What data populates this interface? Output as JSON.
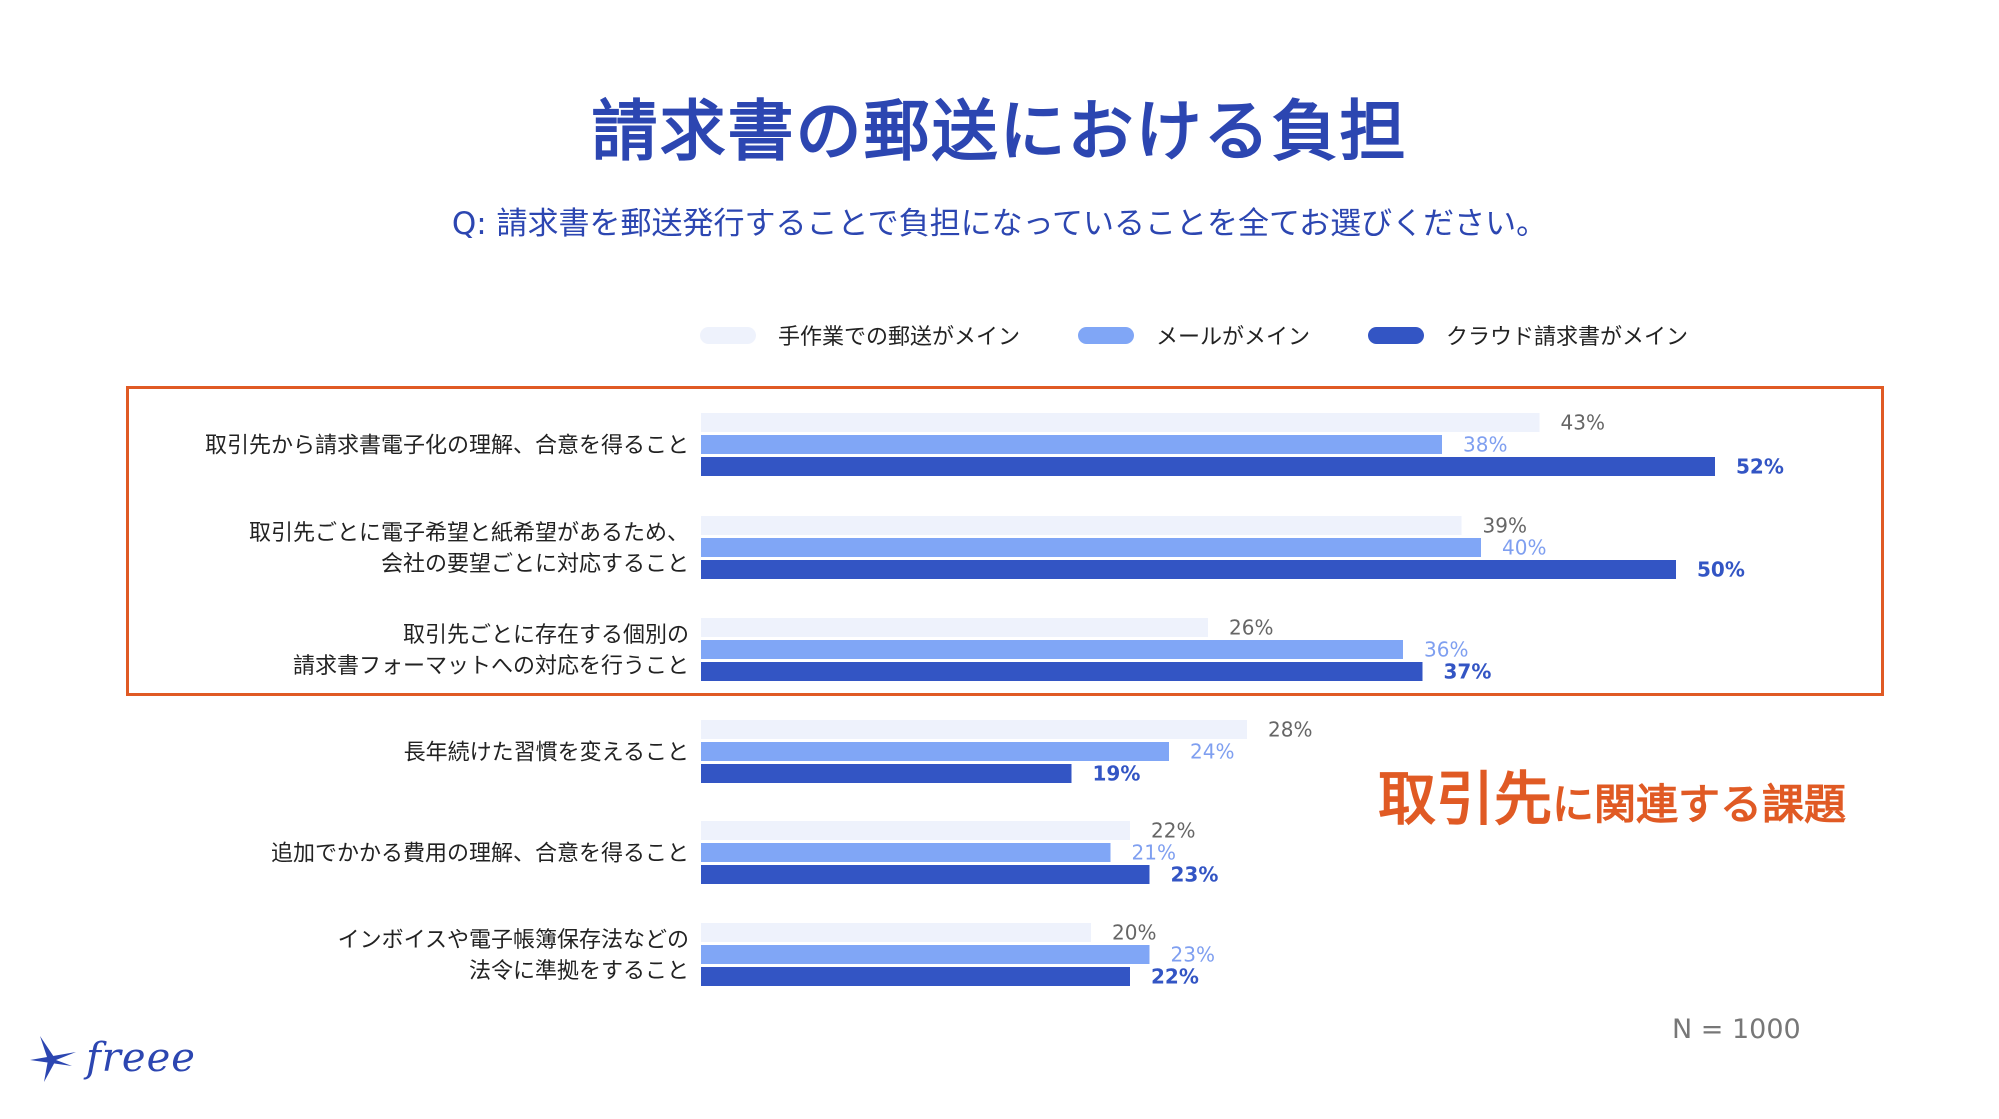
{
  "title": "請求書の郵送における負担",
  "question": "Q: 請求書を郵送発行することで負担になっていることを全てお選びください。",
  "sample_size": "N = 1000",
  "callout": {
    "emphasis": "取引先",
    "rest": "に関連する課題"
  },
  "logo": {
    "text": "freee",
    "icon": "bird-icon"
  },
  "colors": {
    "title": "#2c46b1",
    "accent": "#e05a24",
    "series_manual": "#eef2fc",
    "series_email": "#80a6f6",
    "series_cloud": "#3355c4",
    "label_manual": "#666666",
    "label_email": "#7f9ff0",
    "label_cloud": "#3355c4"
  },
  "chart_data": {
    "type": "bar",
    "orientation": "horizontal",
    "unit": "%",
    "categories": [
      [
        "取引先から請求書電子化の理解、合意を得ること"
      ],
      [
        "取引先ごとに電子希望と紙希望があるため、",
        "会社の要望ごとに対応すること"
      ],
      [
        "取引先ごとに存在する個別の",
        "請求書フォーマットへの対応を行うこと"
      ],
      [
        "長年続けた習慣を変えること"
      ],
      [
        "追加でかかる費用の理解、合意を得ること"
      ],
      [
        "インボイスや電子帳簿保存法などの",
        "法令に準拠をすること"
      ]
    ],
    "series": [
      {
        "name": "手作業での郵送がメイン",
        "values": [
          43,
          39,
          26,
          28,
          22,
          20
        ]
      },
      {
        "name": "メールがメイン",
        "values": [
          38,
          40,
          36,
          24,
          21,
          23
        ]
      },
      {
        "name": "クラウド請求書がメイン",
        "values": [
          52,
          50,
          37,
          19,
          23,
          22
        ]
      }
    ],
    "xlim": [
      0,
      100
    ],
    "grid": false,
    "legend_position": "top",
    "highlighted_categories": [
      0,
      1,
      2
    ]
  }
}
